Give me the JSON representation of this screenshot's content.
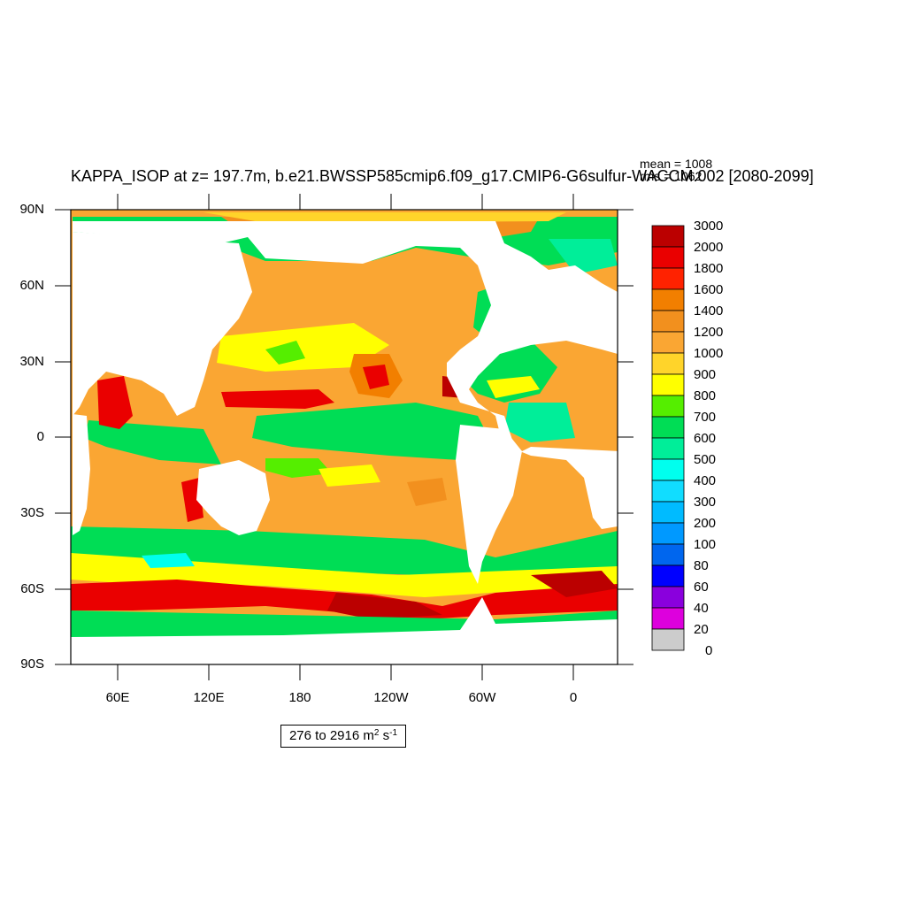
{
  "title": "KAPPA_ISOP at z= 197.7m, b.e21.BWSSP585cmip6.f09_g17.CMIP6-G6sulfur-WACCM.002 [2080-2099]",
  "stats": {
    "mean": "mean = 1008",
    "rms": "rms = 1062"
  },
  "axes": {
    "y_ticks": [
      "90N",
      "60N",
      "30N",
      "0",
      "30S",
      "60S",
      "90S"
    ],
    "x_ticks": [
      "60E",
      "120E",
      "180",
      "120W",
      "60W",
      "0"
    ]
  },
  "colorbar": {
    "levels": [
      "3000",
      "2000",
      "1800",
      "1600",
      "1400",
      "1200",
      "1000",
      "900",
      "800",
      "700",
      "600",
      "500",
      "400",
      "300",
      "200",
      "100",
      "80",
      "60",
      "40",
      "20",
      "0"
    ],
    "colors": [
      "#bb0000",
      "#ea0000",
      "#ff2200",
      "#f27f00",
      "#f2901e",
      "#faa633",
      "#ffd42a",
      "#ffff00",
      "#55ee00",
      "#00dd55",
      "#00ee99",
      "#00ffee",
      "#11ddff",
      "#00bbff",
      "#0099ff",
      "#0066ee",
      "#0000ff",
      "#8a00dd",
      "#dd00dd",
      "#cccccc",
      "#707070"
    ]
  },
  "range": {
    "text": "276 to 2916 m",
    "sup1": "2",
    "mid": " s",
    "sup2": "-1"
  }
}
